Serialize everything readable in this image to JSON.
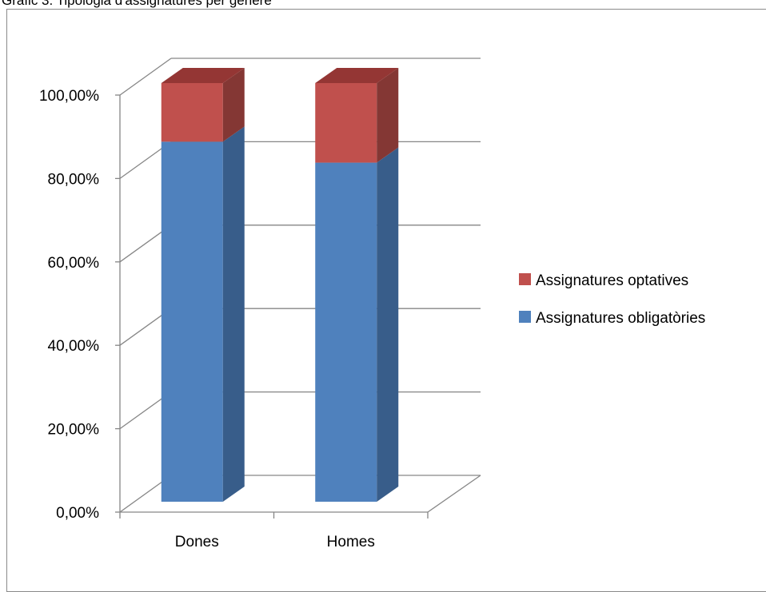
{
  "caption": "Gràfic  3.  Tipologia d'assignatures per gènere",
  "chart_data": {
    "type": "bar",
    "stacked": true,
    "three_d": true,
    "categories": [
      "Dones",
      "Homes"
    ],
    "series": [
      {
        "name": "Assignatures obligatòries",
        "values": [
          86,
          81
        ],
        "color": "#4f81bd",
        "side_color": "#385d8a",
        "top_color": "#4f81bd"
      },
      {
        "name": "Assignatures optatives",
        "values": [
          14,
          19
        ],
        "color": "#c0504d",
        "side_color": "#843734",
        "top_color": "#943634"
      }
    ],
    "legend_order": [
      1,
      0
    ],
    "ylim": [
      0,
      100
    ],
    "yticks": [
      0,
      20,
      40,
      60,
      80,
      100
    ],
    "ytick_labels": [
      "0,00%",
      "20,00%",
      "40,00%",
      "60,00%",
      "80,00%",
      "100,00%"
    ],
    "grid": true,
    "legend_position": "right"
  }
}
